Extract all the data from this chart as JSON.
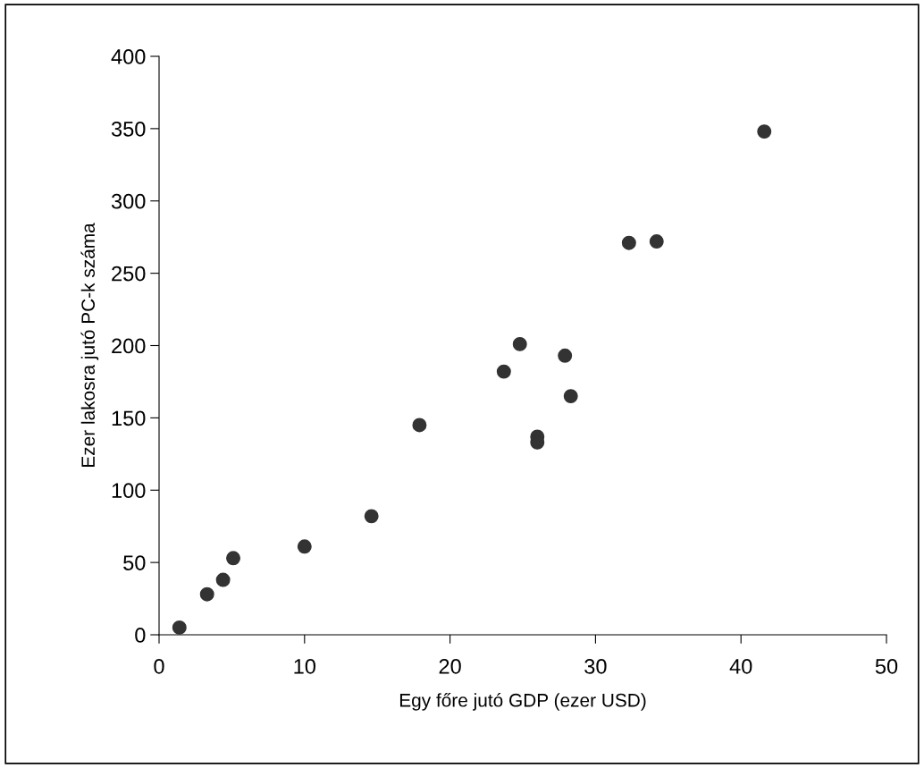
{
  "chart_data": {
    "type": "scatter",
    "xlabel": "Egy főre jutó GDP (ezer USD)",
    "ylabel": "Ezer lakosra jutó PC-k száma",
    "x": [
      1.4,
      3.3,
      4.4,
      5.1,
      10.0,
      14.6,
      17.9,
      23.7,
      24.8,
      26.0,
      26.0,
      27.9,
      28.3,
      32.3,
      34.2,
      41.6
    ],
    "values": [
      5,
      28,
      38,
      53,
      61,
      82,
      145,
      182,
      201,
      137,
      133,
      193,
      165,
      271,
      272,
      348
    ],
    "color": "#333333",
    "marker": "circle",
    "grid": false,
    "legend": false,
    "xlim": [
      0,
      50
    ],
    "xticks": [
      0,
      10,
      20,
      30,
      40,
      50
    ],
    "ylim": [
      0,
      400
    ],
    "yticks": [
      0,
      50,
      100,
      150,
      200,
      250,
      300,
      350,
      400
    ]
  }
}
